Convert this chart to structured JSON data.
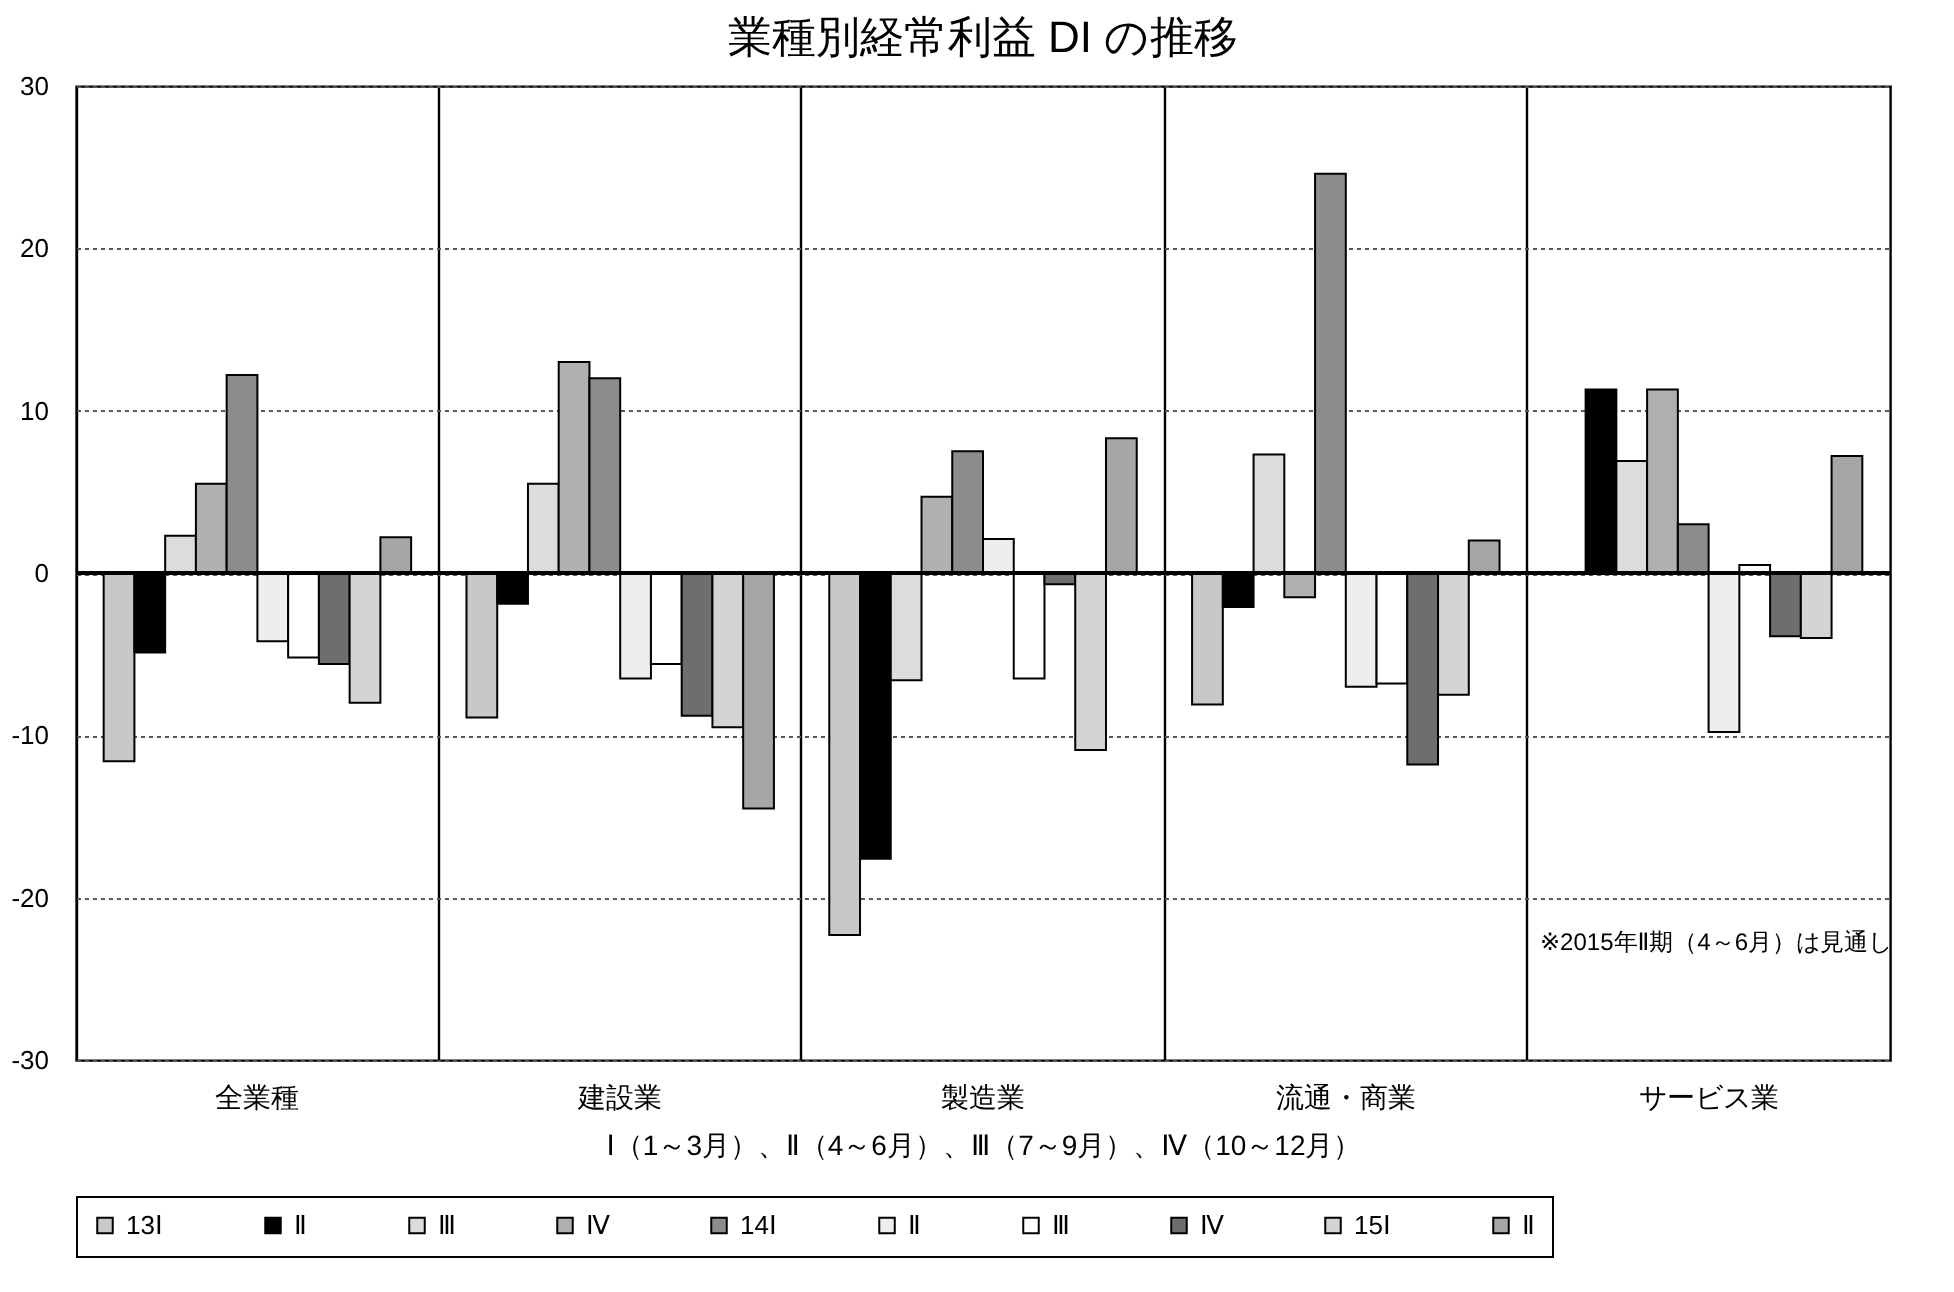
{
  "chart_data": {
    "type": "bar",
    "title": "業種別経常利益 DI の推移",
    "xlabel": "Ⅰ（1～3月）、Ⅱ（4～6月）、Ⅲ（7～9月）、Ⅳ（10～12月）",
    "categories": [
      "全業種",
      "建設業",
      "製造業",
      "流通・商業",
      "サービス業"
    ],
    "series": [
      {
        "name": "13Ⅰ",
        "color": "#c8c8c8",
        "values": [
          -11.6,
          -8.9,
          -22.3,
          -8.1,
          null
        ]
      },
      {
        "name": "Ⅱ",
        "color": "#000000",
        "values": [
          -4.9,
          -1.9,
          -17.6,
          -2.1,
          11.3
        ]
      },
      {
        "name": "Ⅲ",
        "color": "#dcdcdc",
        "values": [
          2.3,
          5.5,
          -6.6,
          7.3,
          6.9
        ]
      },
      {
        "name": "Ⅳ",
        "color": "#b0b0b0",
        "values": [
          5.5,
          13.0,
          4.7,
          -1.5,
          11.3
        ]
      },
      {
        "name": "14Ⅰ",
        "color": "#8c8c8c",
        "values": [
          12.2,
          12.0,
          7.5,
          24.6,
          3.0
        ]
      },
      {
        "name": "Ⅱ",
        "color": "#eeeeee",
        "values": [
          -4.2,
          -6.5,
          2.1,
          -7.0,
          -9.8
        ]
      },
      {
        "name": "Ⅲ",
        "color": "#ffffff",
        "values": [
          -5.2,
          -5.6,
          -6.5,
          -6.8,
          0.5
        ]
      },
      {
        "name": "Ⅳ",
        "color": "#6e6e6e",
        "values": [
          -5.6,
          -8.8,
          -0.7,
          -11.8,
          -3.9
        ]
      },
      {
        "name": "15Ⅰ",
        "color": "#d4d4d4",
        "values": [
          -8.0,
          -9.5,
          -10.9,
          -7.5,
          -4.0
        ]
      },
      {
        "name": "Ⅱ",
        "color": "#a6a6a6",
        "values": [
          2.2,
          -14.5,
          8.3,
          2.0,
          7.2
        ]
      }
    ],
    "ylim": [
      -30,
      30
    ],
    "yticks": [
      -30,
      -20,
      -10,
      0,
      10,
      20,
      30
    ],
    "grid": true,
    "legend": "bottom",
    "ref_lines": [
      {
        "axis": "y",
        "value": 0
      }
    ],
    "annotations": [
      "※2015年Ⅱ期（4～6月）は見通し"
    ]
  }
}
